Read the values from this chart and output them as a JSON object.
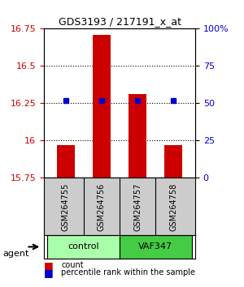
{
  "title": "GDS3193 / 217191_x_at",
  "samples": [
    "GSM264755",
    "GSM264756",
    "GSM264757",
    "GSM264758"
  ],
  "bar_values": [
    15.97,
    16.71,
    16.31,
    15.97
  ],
  "dot_values": [
    16.27,
    16.27,
    16.27,
    16.27
  ],
  "dot_percentiles": [
    50,
    50,
    50,
    50
  ],
  "bar_color": "#cc0000",
  "dot_color": "#0000cc",
  "ylim_left": [
    15.75,
    16.75
  ],
  "ylim_right": [
    0,
    100
  ],
  "yticks_left": [
    15.75,
    16.0,
    16.25,
    16.5,
    16.75
  ],
  "yticks_right": [
    0,
    25,
    50,
    75,
    100
  ],
  "ytick_labels_left": [
    "15.75",
    "16",
    "16.25",
    "16.5",
    "16.75"
  ],
  "ytick_labels_right": [
    "0",
    "25",
    "50",
    "75",
    "100%"
  ],
  "groups": [
    {
      "label": "control",
      "samples": [
        0,
        1
      ],
      "color": "#aaffaa"
    },
    {
      "label": "VAF347",
      "samples": [
        2,
        3
      ],
      "color": "#44cc44"
    }
  ],
  "group_row_label": "agent",
  "legend_count_label": "count",
  "legend_pct_label": "percentile rank within the sample",
  "bar_width": 0.5,
  "grid_linestyle": "dotted",
  "grid_color": "#000000",
  "background_color": "#ffffff",
  "plot_bg_color": "#ffffff",
  "sample_box_color": "#cccccc"
}
